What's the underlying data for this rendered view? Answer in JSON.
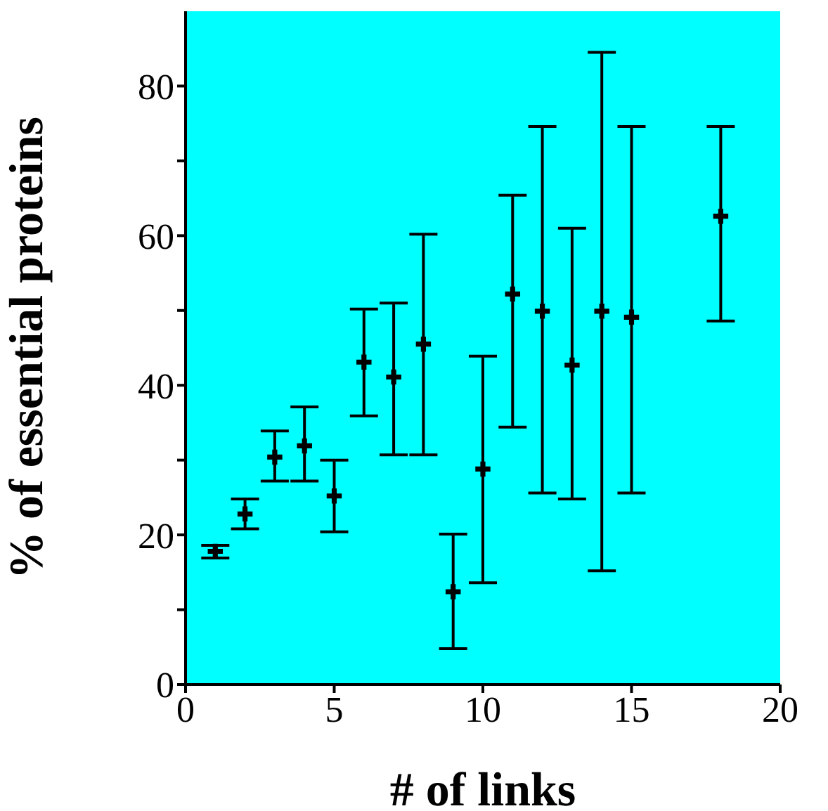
{
  "chart_data": {
    "type": "scatter",
    "xlabel": "# of links",
    "ylabel": "% of essential proteins",
    "x": [
      1,
      2,
      3,
      4,
      5,
      6,
      7,
      8,
      9,
      10,
      11,
      12,
      13,
      14,
      15,
      18
    ],
    "series": [
      {
        "color": "#000000",
        "values": [
          17.8,
          22.8,
          30.4,
          31.9,
          25.2,
          43.1,
          41.1,
          45.5,
          12.4,
          28.8,
          52.2,
          49.9,
          42.7,
          49.9,
          49.1,
          62.6
        ],
        "errors": [
          [
            16.9,
            18.6
          ],
          [
            20.8,
            24.8
          ],
          [
            27.2,
            33.9
          ],
          [
            27.2,
            37.1
          ],
          [
            20.4,
            30.0
          ],
          [
            35.9,
            50.2
          ],
          [
            30.7,
            51.0
          ],
          [
            30.7,
            60.2
          ],
          [
            4.8,
            20.1
          ],
          [
            13.6,
            43.9
          ],
          [
            34.4,
            65.4
          ],
          [
            25.6,
            74.6
          ],
          [
            24.8,
            61.0
          ],
          [
            15.2,
            84.5
          ],
          [
            25.6,
            74.6
          ],
          [
            48.6,
            74.6
          ]
        ]
      }
    ],
    "xlim": [
      0,
      20
    ],
    "xticks": [
      0,
      5,
      10,
      15,
      20
    ],
    "ylim": [
      0,
      90
    ],
    "yticks": [
      0,
      {
        "value": 10,
        "label": null
      },
      20,
      {
        "value": 30,
        "label": null
      },
      40,
      {
        "value": 50,
        "label": null
      },
      60,
      {
        "value": 70,
        "label": null
      },
      80
    ],
    "grid": false,
    "marker": "cross"
  }
}
